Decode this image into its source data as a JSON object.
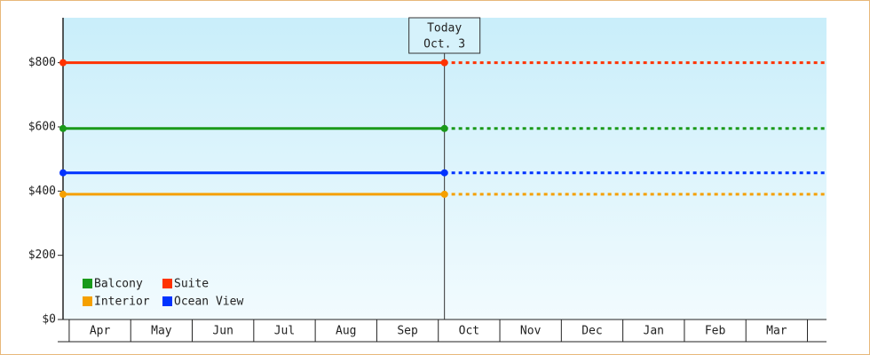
{
  "chart_data": {
    "type": "line",
    "categories": [
      "Apr",
      "May",
      "Jun",
      "Jul",
      "Aug",
      "Sep",
      "Oct",
      "Nov",
      "Dec",
      "Jan",
      "Feb",
      "Mar"
    ],
    "x": [
      -0.1,
      6.1
    ],
    "xlim": [
      -0.1,
      12.31
    ],
    "ylim": [
      0,
      940
    ],
    "yticks": [
      {
        "value": 0,
        "label": "$0"
      },
      {
        "value": 200,
        "label": "$200"
      },
      {
        "value": 400,
        "label": "$400"
      },
      {
        "value": 600,
        "label": "$600"
      },
      {
        "value": 800,
        "label": "$800"
      }
    ],
    "today": {
      "x": 6.1,
      "label": [
        "Today",
        "Oct. 3"
      ]
    },
    "legend": "lower left",
    "series": [
      {
        "name": "Balcony",
        "color": "#1a9a1a",
        "values": [
          595,
          595
        ]
      },
      {
        "name": "Suite",
        "color": "#ff3300",
        "values": [
          800,
          800
        ]
      },
      {
        "name": "Interior",
        "color": "#f5a000",
        "values": [
          390,
          390
        ]
      },
      {
        "name": "Ocean View",
        "color": "#0033ff",
        "values": [
          457,
          457
        ]
      }
    ]
  }
}
